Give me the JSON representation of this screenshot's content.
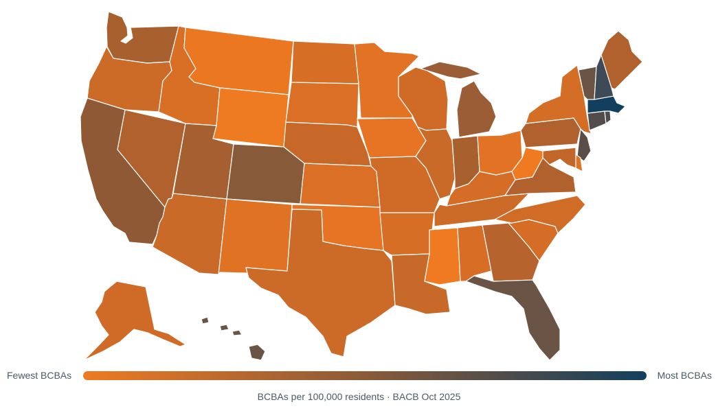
{
  "legend": {
    "low_label": "Fewest BCBAs",
    "high_label": "Most BCBAs",
    "low_color": "#ee7a22",
    "mid_color": "#8a5a38",
    "high_color": "#123f5e"
  },
  "caption": "BCBAs per 100,000 residents · BACB Oct 2025",
  "states": [
    {
      "id": "WA",
      "fill": "#a9602f"
    },
    {
      "id": "OR",
      "fill": "#cc6a28"
    },
    {
      "id": "CA",
      "fill": "#8e5934"
    },
    {
      "id": "NV",
      "fill": "#b0612e"
    },
    {
      "id": "ID",
      "fill": "#d96e25"
    },
    {
      "id": "MT",
      "fill": "#eb7721"
    },
    {
      "id": "WY",
      "fill": "#ee7a22"
    },
    {
      "id": "UT",
      "fill": "#a55f31"
    },
    {
      "id": "AZ",
      "fill": "#c96a29"
    },
    {
      "id": "CO",
      "fill": "#875a3a"
    },
    {
      "id": "NM",
      "fill": "#e07224"
    },
    {
      "id": "ND",
      "fill": "#d66e25"
    },
    {
      "id": "SD",
      "fill": "#da6f25"
    },
    {
      "id": "NE",
      "fill": "#c76828"
    },
    {
      "id": "KS",
      "fill": "#da6f25"
    },
    {
      "id": "OK",
      "fill": "#e67424"
    },
    {
      "id": "TX",
      "fill": "#cc6a28"
    },
    {
      "id": "MN",
      "fill": "#e27324"
    },
    {
      "id": "IA",
      "fill": "#e67424"
    },
    {
      "id": "MO",
      "fill": "#cf6b27"
    },
    {
      "id": "AR",
      "fill": "#d66e25"
    },
    {
      "id": "LA",
      "fill": "#c66929"
    },
    {
      "id": "WI",
      "fill": "#cf6b27"
    },
    {
      "id": "IL",
      "fill": "#c96a29"
    },
    {
      "id": "MI",
      "fill": "#9a5d35"
    },
    {
      "id": "IN",
      "fill": "#a9602f"
    },
    {
      "id": "OH",
      "fill": "#e27324"
    },
    {
      "id": "KY",
      "fill": "#d56d26"
    },
    {
      "id": "TN",
      "fill": "#cc6a28"
    },
    {
      "id": "MS",
      "fill": "#ef7a22"
    },
    {
      "id": "AL",
      "fill": "#d86e25"
    },
    {
      "id": "GA",
      "fill": "#b6632d"
    },
    {
      "id": "FL",
      "fill": "#6a5445"
    },
    {
      "id": "SC",
      "fill": "#d56d26"
    },
    {
      "id": "NC",
      "fill": "#d16c27"
    },
    {
      "id": "VA",
      "fill": "#b0612e"
    },
    {
      "id": "WV",
      "fill": "#ef7a22"
    },
    {
      "id": "PA",
      "fill": "#b0612e"
    },
    {
      "id": "NY",
      "fill": "#d46d26"
    },
    {
      "id": "NJ",
      "fill": "#5a4d47"
    },
    {
      "id": "DE",
      "fill": "#e07224"
    },
    {
      "id": "MD",
      "fill": "#c26729"
    },
    {
      "id": "CT",
      "fill": "#524c4c"
    },
    {
      "id": "RI",
      "fill": "#4f4c4d"
    },
    {
      "id": "MA",
      "fill": "#123f5e"
    },
    {
      "id": "VT",
      "fill": "#6a5445"
    },
    {
      "id": "NH",
      "fill": "#3e4a55"
    },
    {
      "id": "ME",
      "fill": "#b0612e"
    },
    {
      "id": "AK",
      "fill": "#d06b27"
    },
    {
      "id": "HI",
      "fill": "#6a5445"
    }
  ]
}
